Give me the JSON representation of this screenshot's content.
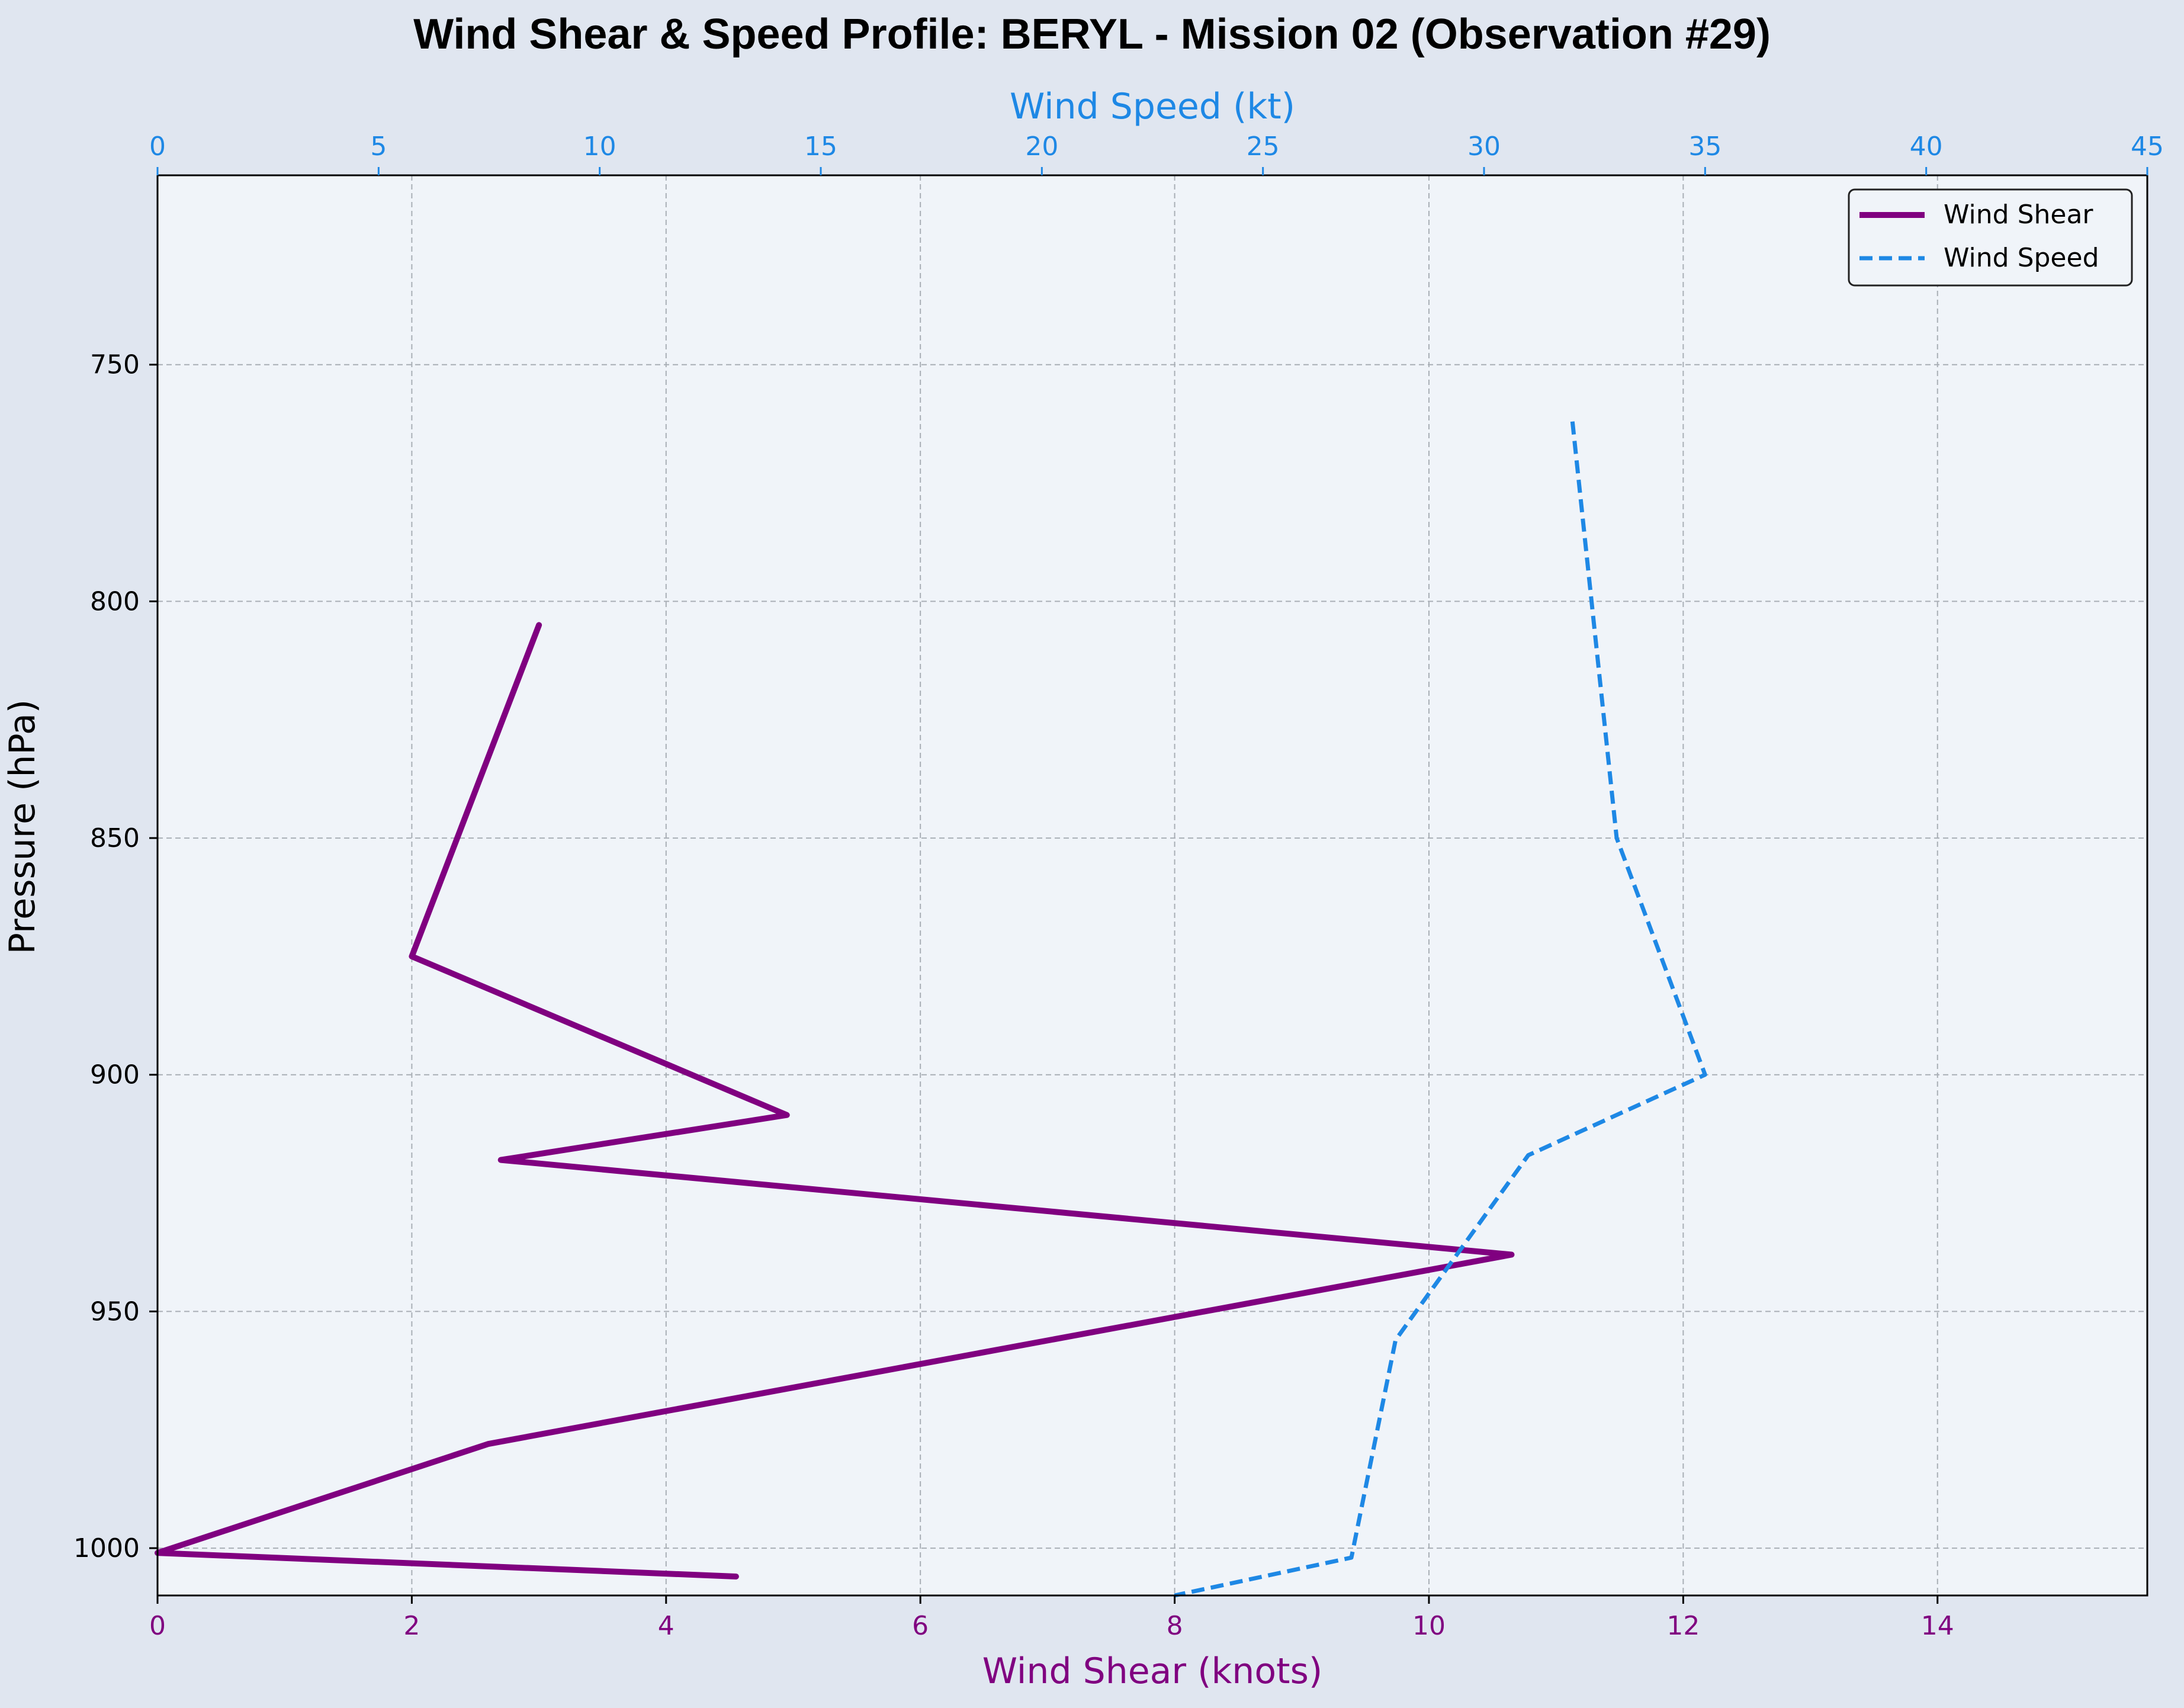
{
  "chart_data": {
    "type": "line",
    "title": "Wind Shear & Speed Profile: BERYL - Mission 02 (Observation #29)",
    "ylabel": "Pressure (hPa)",
    "y_inverted": true,
    "ylim": [
      1010,
      710
    ],
    "yticks": [
      750,
      800,
      850,
      900,
      950,
      1000
    ],
    "x_bottom": {
      "label": "Wind Shear (knots)",
      "lim": [
        0,
        15.65
      ],
      "ticks": [
        0,
        2,
        4,
        6,
        8,
        10,
        12,
        14
      ],
      "color": "#800080"
    },
    "x_top": {
      "label": "Wind Speed (kt)",
      "lim": [
        0,
        45
      ],
      "ticks": [
        0,
        5,
        10,
        15,
        20,
        25,
        30,
        35,
        40,
        45
      ],
      "color": "#1e88e5"
    },
    "grid": true,
    "legend": {
      "position": "top-right",
      "entries": [
        "Wind Shear",
        "Wind Speed"
      ]
    },
    "series": [
      {
        "name": "Wind Shear",
        "axis": "bottom",
        "color": "#800080",
        "style": "solid",
        "points": [
          {
            "x": 3.0,
            "y": 805
          },
          {
            "x": 2.0,
            "y": 875
          },
          {
            "x": 4.95,
            "y": 908.5
          },
          {
            "x": 2.7,
            "y": 918
          },
          {
            "x": 10.65,
            "y": 938
          },
          {
            "x": 2.6,
            "y": 978
          },
          {
            "x": 0.0,
            "y": 1001
          },
          {
            "x": 4.55,
            "y": 1006
          }
        ]
      },
      {
        "name": "Wind Speed",
        "axis": "top",
        "color": "#1e88e5",
        "style": "dashed",
        "points": [
          {
            "x": 32.0,
            "y": 762
          },
          {
            "x": 33.0,
            "y": 850
          },
          {
            "x": 35.0,
            "y": 900
          },
          {
            "x": 31.0,
            "y": 917
          },
          {
            "x": 28.0,
            "y": 956
          },
          {
            "x": 27.0,
            "y": 1002
          },
          {
            "x": 23.0,
            "y": 1010
          }
        ]
      }
    ]
  }
}
